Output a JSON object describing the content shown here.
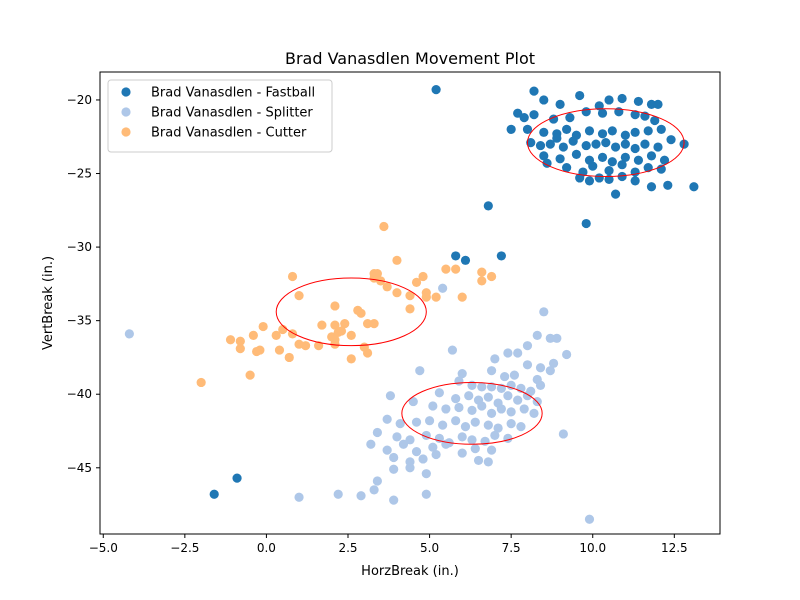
{
  "chart_data": {
    "type": "scatter",
    "title": "Brad Vanasdlen Movement Plot",
    "xlabel": "HorzBreak (in.)",
    "ylabel": "VertBreak (in.)",
    "xlim": [
      -5.1,
      13.9
    ],
    "ylim": [
      -49.5,
      -18.1
    ],
    "xticks": [
      -5.0,
      -2.5,
      0.0,
      2.5,
      5.0,
      7.5,
      10.0,
      12.5
    ],
    "xtick_labels": [
      "−5.0",
      "−2.5",
      "0.0",
      "2.5",
      "5.0",
      "7.5",
      "10.0",
      "12.5"
    ],
    "yticks": [
      -45,
      -40,
      -35,
      -30,
      -25,
      -20
    ],
    "ytick_labels": [
      "−45",
      "−40",
      "−35",
      "−30",
      "−25",
      "−20"
    ],
    "grid": false,
    "legend_position": "top-left",
    "series": [
      {
        "name": "Brad Vanasdlen - Fastball",
        "color": "#1f77b4",
        "points": [
          [
            5.2,
            -19.3
          ],
          [
            9.8,
            -28.4
          ],
          [
            13.1,
            -25.9
          ],
          [
            6.8,
            -27.2
          ],
          [
            5.8,
            -30.6
          ],
          [
            6.1,
            -30.9
          ],
          [
            7.2,
            -30.6
          ],
          [
            -1.6,
            -46.8
          ],
          [
            -0.9,
            -45.7
          ],
          [
            8.2,
            -19.4
          ],
          [
            8.5,
            -20.0
          ],
          [
            9.0,
            -20.3
          ],
          [
            9.6,
            -19.7
          ],
          [
            10.2,
            -20.4
          ],
          [
            10.5,
            -20.0
          ],
          [
            10.9,
            -19.9
          ],
          [
            11.4,
            -20.1
          ],
          [
            11.8,
            -20.3
          ],
          [
            12.0,
            -20.3
          ],
          [
            7.7,
            -20.9
          ],
          [
            7.9,
            -21.2
          ],
          [
            8.2,
            -21.0
          ],
          [
            8.8,
            -21.3
          ],
          [
            9.3,
            -21.2
          ],
          [
            9.8,
            -20.8
          ],
          [
            10.3,
            -20.9
          ],
          [
            10.8,
            -20.8
          ],
          [
            11.3,
            -21.0
          ],
          [
            11.6,
            -21.1
          ],
          [
            11.9,
            -21.4
          ],
          [
            7.5,
            -22.0
          ],
          [
            8.0,
            -22.0
          ],
          [
            8.5,
            -22.2
          ],
          [
            8.9,
            -22.3
          ],
          [
            9.2,
            -22.0
          ],
          [
            9.5,
            -22.4
          ],
          [
            9.9,
            -22.1
          ],
          [
            10.3,
            -22.3
          ],
          [
            10.6,
            -22.1
          ],
          [
            11.0,
            -22.4
          ],
          [
            11.3,
            -22.2
          ],
          [
            11.7,
            -22.1
          ],
          [
            12.1,
            -22.0
          ],
          [
            8.1,
            -22.9
          ],
          [
            8.4,
            -23.1
          ],
          [
            8.7,
            -23.0
          ],
          [
            9.1,
            -23.2
          ],
          [
            9.4,
            -22.8
          ],
          [
            9.8,
            -23.1
          ],
          [
            10.1,
            -23.0
          ],
          [
            10.4,
            -22.9
          ],
          [
            10.7,
            -23.2
          ],
          [
            11.0,
            -23.0
          ],
          [
            11.3,
            -23.3
          ],
          [
            11.6,
            -23.0
          ],
          [
            12.0,
            -23.2
          ],
          [
            12.4,
            -22.7
          ],
          [
            12.8,
            -23.0
          ],
          [
            8.5,
            -23.8
          ],
          [
            9.0,
            -24.0
          ],
          [
            9.5,
            -23.7
          ],
          [
            9.9,
            -24.1
          ],
          [
            10.3,
            -23.9
          ],
          [
            10.6,
            -24.2
          ],
          [
            11.0,
            -23.9
          ],
          [
            11.4,
            -24.1
          ],
          [
            11.8,
            -23.8
          ],
          [
            12.2,
            -24.1
          ],
          [
            8.6,
            -24.3
          ],
          [
            9.2,
            -24.6
          ],
          [
            9.7,
            -24.9
          ],
          [
            10.0,
            -24.5
          ],
          [
            10.5,
            -24.8
          ],
          [
            10.9,
            -24.4
          ],
          [
            11.3,
            -24.9
          ],
          [
            11.7,
            -24.6
          ],
          [
            12.1,
            -24.7
          ],
          [
            9.9,
            -25.5
          ],
          [
            10.2,
            -25.3
          ],
          [
            10.5,
            -25.4
          ],
          [
            10.9,
            -25.2
          ],
          [
            11.3,
            -25.5
          ],
          [
            11.8,
            -25.9
          ],
          [
            12.3,
            -25.8
          ],
          [
            10.7,
            -26.4
          ],
          [
            9.6,
            -25.3
          ],
          [
            8.9,
            -22.6
          ]
        ]
      },
      {
        "name": "Brad Vanasdlen - Splitter",
        "color": "#aec7e8",
        "points": [
          [
            -4.2,
            -35.9
          ],
          [
            5.4,
            -32.8
          ],
          [
            1.0,
            -47.0
          ],
          [
            2.2,
            -46.8
          ],
          [
            2.9,
            -46.9
          ],
          [
            3.9,
            -47.2
          ],
          [
            4.9,
            -46.8
          ],
          [
            3.3,
            -46.5
          ],
          [
            3.4,
            -45.9
          ],
          [
            9.9,
            -48.5
          ],
          [
            8.5,
            -34.4
          ],
          [
            8.3,
            -36.0
          ],
          [
            8.7,
            -36.2
          ],
          [
            8.9,
            -36.2
          ],
          [
            8.0,
            -36.7
          ],
          [
            9.2,
            -37.3
          ],
          [
            9.1,
            -42.7
          ],
          [
            5.7,
            -37.0
          ],
          [
            7.0,
            -37.6
          ],
          [
            7.4,
            -37.2
          ],
          [
            7.7,
            -37.2
          ],
          [
            8.0,
            -38.0
          ],
          [
            8.4,
            -38.2
          ],
          [
            8.8,
            -37.9
          ],
          [
            4.7,
            -38.4
          ],
          [
            6.0,
            -38.6
          ],
          [
            6.9,
            -38.4
          ],
          [
            7.3,
            -38.8
          ],
          [
            7.6,
            -38.7
          ],
          [
            8.3,
            -39.0
          ],
          [
            8.7,
            -38.4
          ],
          [
            5.9,
            -39.1
          ],
          [
            6.3,
            -39.4
          ],
          [
            6.6,
            -39.5
          ],
          [
            6.9,
            -39.5
          ],
          [
            7.2,
            -39.6
          ],
          [
            7.5,
            -39.4
          ],
          [
            7.8,
            -39.6
          ],
          [
            8.1,
            -39.8
          ],
          [
            8.4,
            -39.4
          ],
          [
            3.8,
            -40.1
          ],
          [
            5.3,
            -39.9
          ],
          [
            5.8,
            -40.3
          ],
          [
            6.2,
            -40.1
          ],
          [
            6.5,
            -40.4
          ],
          [
            6.8,
            -40.2
          ],
          [
            7.1,
            -40.6
          ],
          [
            7.4,
            -40.1
          ],
          [
            7.7,
            -40.4
          ],
          [
            8.0,
            -40.1
          ],
          [
            8.3,
            -40.5
          ],
          [
            4.5,
            -40.5
          ],
          [
            5.1,
            -40.8
          ],
          [
            5.5,
            -41.0
          ],
          [
            5.9,
            -40.9
          ],
          [
            6.3,
            -41.1
          ],
          [
            6.6,
            -40.8
          ],
          [
            6.9,
            -41.3
          ],
          [
            7.2,
            -41.0
          ],
          [
            7.5,
            -41.2
          ],
          [
            7.9,
            -41.0
          ],
          [
            8.2,
            -41.3
          ],
          [
            3.7,
            -41.7
          ],
          [
            4.1,
            -42.0
          ],
          [
            4.6,
            -41.9
          ],
          [
            5.0,
            -41.8
          ],
          [
            5.4,
            -42.1
          ],
          [
            5.8,
            -41.8
          ],
          [
            6.1,
            -42.2
          ],
          [
            6.4,
            -41.9
          ],
          [
            6.8,
            -42.1
          ],
          [
            7.1,
            -42.3
          ],
          [
            7.5,
            -42.0
          ],
          [
            7.8,
            -42.2
          ],
          [
            3.4,
            -42.6
          ],
          [
            4.0,
            -42.9
          ],
          [
            4.4,
            -43.1
          ],
          [
            4.9,
            -42.8
          ],
          [
            5.3,
            -43.0
          ],
          [
            5.6,
            -43.3
          ],
          [
            6.0,
            -42.9
          ],
          [
            6.3,
            -43.1
          ],
          [
            6.7,
            -43.2
          ],
          [
            7.0,
            -42.8
          ],
          [
            7.4,
            -43.0
          ],
          [
            3.2,
            -43.4
          ],
          [
            3.7,
            -43.8
          ],
          [
            4.2,
            -43.4
          ],
          [
            4.6,
            -43.9
          ],
          [
            5.1,
            -43.6
          ],
          [
            5.5,
            -43.4
          ],
          [
            6.0,
            -44.0
          ],
          [
            6.4,
            -43.7
          ],
          [
            6.9,
            -43.8
          ],
          [
            3.9,
            -44.3
          ],
          [
            4.4,
            -44.6
          ],
          [
            4.8,
            -44.4
          ],
          [
            5.2,
            -44.1
          ],
          [
            6.5,
            -44.5
          ],
          [
            6.8,
            -44.6
          ],
          [
            3.9,
            -45.1
          ],
          [
            4.4,
            -45.0
          ],
          [
            4.9,
            -45.4
          ]
        ]
      },
      {
        "name": "Brad Vanasdlen - Cutter",
        "color": "#ffbb78",
        "points": [
          [
            3.6,
            -28.6
          ],
          [
            4.0,
            -30.9
          ],
          [
            0.8,
            -32.0
          ],
          [
            1.0,
            -33.3
          ],
          [
            3.3,
            -31.8
          ],
          [
            3.4,
            -31.8
          ],
          [
            3.5,
            -32.3
          ],
          [
            3.3,
            -32.1
          ],
          [
            3.7,
            -32.7
          ],
          [
            4.6,
            -32.4
          ],
          [
            4.8,
            -32.0
          ],
          [
            5.5,
            -31.5
          ],
          [
            5.8,
            -31.5
          ],
          [
            6.6,
            -31.7
          ],
          [
            6.9,
            -32.0
          ],
          [
            6.6,
            -32.3
          ],
          [
            4.9,
            -33.1
          ],
          [
            4.9,
            -33.4
          ],
          [
            5.2,
            -33.4
          ],
          [
            6.0,
            -33.4
          ],
          [
            4.0,
            -33.1
          ],
          [
            4.4,
            -33.3
          ],
          [
            2.1,
            -34.0
          ],
          [
            2.8,
            -34.3
          ],
          [
            2.9,
            -34.5
          ],
          [
            4.4,
            -34.2
          ],
          [
            -0.1,
            -35.4
          ],
          [
            0.5,
            -35.6
          ],
          [
            1.7,
            -35.3
          ],
          [
            2.1,
            -35.3
          ],
          [
            2.4,
            -35.2
          ],
          [
            3.1,
            -35.2
          ],
          [
            3.3,
            -35.2
          ],
          [
            -1.1,
            -36.3
          ],
          [
            -0.8,
            -36.4
          ],
          [
            -0.4,
            -36.0
          ],
          [
            0.3,
            -36.0
          ],
          [
            0.8,
            -35.9
          ],
          [
            2.0,
            -36.1
          ],
          [
            2.1,
            -36.3
          ],
          [
            2.2,
            -35.8
          ],
          [
            2.6,
            -36.0
          ],
          [
            -0.8,
            -36.9
          ],
          [
            -0.3,
            -37.1
          ],
          [
            0.4,
            -37.0
          ],
          [
            1.2,
            -36.7
          ],
          [
            1.6,
            -36.7
          ],
          [
            3.0,
            -36.8
          ],
          [
            2.1,
            -36.6
          ],
          [
            0.7,
            -37.5
          ],
          [
            2.6,
            -37.6
          ],
          [
            3.1,
            -37.2
          ],
          [
            -0.5,
            -38.7
          ],
          [
            -2.0,
            -39.2
          ],
          [
            -0.2,
            -37.0
          ],
          [
            1.0,
            -36.6
          ],
          [
            2.3,
            -35.7
          ]
        ]
      }
    ],
    "ellipses": [
      {
        "series": "Brad Vanasdlen - Fastball",
        "center": [
          10.4,
          -22.9
        ],
        "width": 4.8,
        "height": 4.6,
        "color": "#ff0000"
      },
      {
        "series": "Brad Vanasdlen - Splitter",
        "center": [
          6.3,
          -41.3
        ],
        "width": 4.3,
        "height": 4.2,
        "color": "#ff0000"
      },
      {
        "series": "Brad Vanasdlen - Cutter",
        "center": [
          2.6,
          -34.4
        ],
        "width": 4.6,
        "height": 4.6,
        "color": "#ff0000"
      }
    ]
  }
}
